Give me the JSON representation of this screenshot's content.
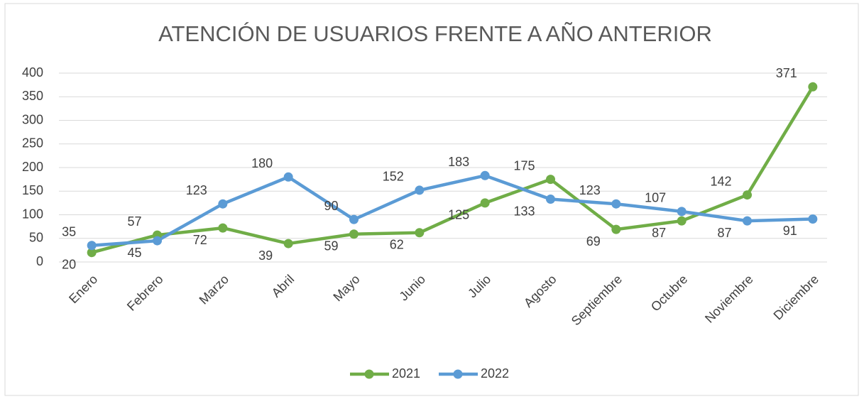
{
  "chart_data": {
    "type": "line",
    "title": "ATENCIÓN DE USUARIOS FRENTE A AÑO ANTERIOR",
    "categories": [
      "Enero",
      "Febrero",
      "Marzo",
      "Abril",
      "Mayo",
      "Junio",
      "Julio",
      "Agosto",
      "Septiembre",
      "Octubre",
      "Noviembre",
      "Diciembre"
    ],
    "series": [
      {
        "name": "2021",
        "color": "#70ad47",
        "values": [
          20,
          57,
          72,
          39,
          59,
          62,
          125,
          175,
          69,
          87,
          142,
          371
        ]
      },
      {
        "name": "2022",
        "color": "#5b9bd5",
        "values": [
          35,
          45,
          123,
          180,
          90,
          152,
          183,
          133,
          123,
          107,
          87,
          91
        ]
      }
    ],
    "ylim": [
      0,
      400
    ],
    "yticks": [
      0,
      50,
      100,
      150,
      200,
      250,
      300,
      350,
      400
    ],
    "grid": true,
    "legend": "bottom"
  }
}
